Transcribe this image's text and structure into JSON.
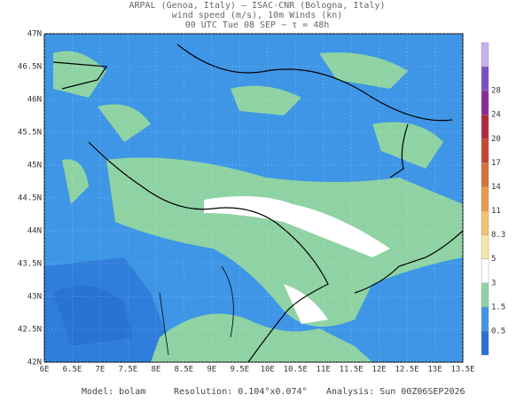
{
  "header": {
    "lines": [
      "ARPAL (Genoa, Italy)  —  ISAC-CNR (Bologna, Italy)",
      "wind speed (m/s), 10m Winds (kn)",
      "00 UTC Tue 08 SEP  −  τ = 48h"
    ]
  },
  "axes": {
    "lat_labels": [
      "47N",
      "46.5N",
      "46N",
      "45.5N",
      "45N",
      "44.5N",
      "44N",
      "43.5N",
      "43N",
      "42.5N",
      "42N"
    ],
    "lon_labels": [
      "6E",
      "6.5E",
      "7E",
      "7.5E",
      "8E",
      "8.5E",
      "9E",
      "9.5E",
      "10E",
      "10.5E",
      "11E",
      "11.5E",
      "12E",
      "12.5E",
      "13E",
      "13.5E"
    ]
  },
  "colorbar": {
    "labels": [
      "28",
      "24",
      "20",
      "17",
      "14",
      "11",
      "8.3",
      "5",
      "3",
      "1.5",
      "0.5"
    ]
  },
  "footer": {
    "model": "Model: bolam",
    "resolution": "Resolution: 0.104°x0.074°",
    "analysis": "Analysis: Sun 00Z06SEP2026"
  }
}
